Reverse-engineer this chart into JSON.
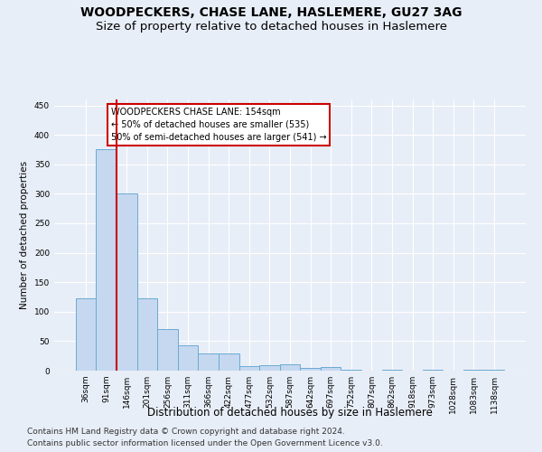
{
  "title": "WOODPECKERS, CHASE LANE, HASLEMERE, GU27 3AG",
  "subtitle": "Size of property relative to detached houses in Haslemere",
  "xlabel": "Distribution of detached houses by size in Haslemere",
  "ylabel": "Number of detached properties",
  "categories": [
    "36sqm",
    "91sqm",
    "146sqm",
    "201sqm",
    "256sqm",
    "311sqm",
    "366sqm",
    "422sqm",
    "477sqm",
    "532sqm",
    "587sqm",
    "642sqm",
    "697sqm",
    "752sqm",
    "807sqm",
    "862sqm",
    "918sqm",
    "973sqm",
    "1028sqm",
    "1083sqm",
    "1138sqm"
  ],
  "values": [
    122,
    375,
    300,
    122,
    70,
    43,
    29,
    29,
    8,
    9,
    11,
    5,
    6,
    2,
    0,
    2,
    0,
    1,
    0,
    1,
    2
  ],
  "bar_color": "#c5d8f0",
  "bar_edge_color": "#6aaad4",
  "vline_color": "#cc0000",
  "annotation_lines": [
    "WOODPECKERS CHASE LANE: 154sqm",
    "← 50% of detached houses are smaller (535)",
    "50% of semi-detached houses are larger (541) →"
  ],
  "annotation_box_color": "#ffffff",
  "annotation_box_edge": "#cc0000",
  "ylim": [
    0,
    460
  ],
  "yticks": [
    0,
    50,
    100,
    150,
    200,
    250,
    300,
    350,
    400,
    450
  ],
  "footer_line1": "Contains HM Land Registry data © Crown copyright and database right 2024.",
  "footer_line2": "Contains public sector information licensed under the Open Government Licence v3.0.",
  "bg_color": "#e8eef7",
  "plot_bg_color": "#e8eef7",
  "title_fontsize": 10,
  "subtitle_fontsize": 9.5,
  "xlabel_fontsize": 8.5,
  "ylabel_fontsize": 7.5,
  "tick_fontsize": 6.5,
  "footer_fontsize": 6.5
}
